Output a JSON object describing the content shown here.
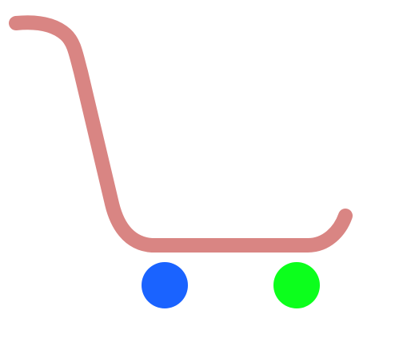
{
  "drawing": {
    "subject": "cart",
    "handle_color": "#d98583",
    "left_wheel_color": "#1a63ff",
    "right_wheel_color": "#0cff1c"
  }
}
